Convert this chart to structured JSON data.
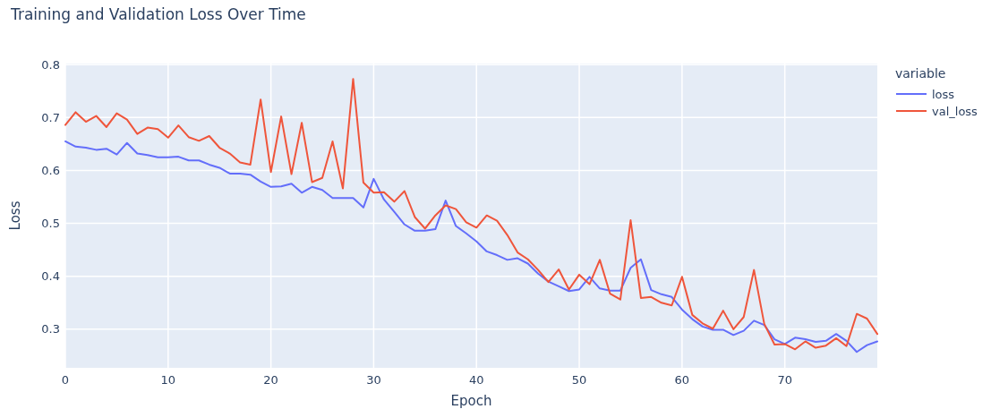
{
  "chart_data": {
    "type": "line",
    "title": "Training and Validation Loss Over Time",
    "xlabel": "Epoch",
    "ylabel": "Loss",
    "legend_title": "variable",
    "legend": "right",
    "grid": true,
    "line_style": "solid",
    "x": [
      0,
      1,
      2,
      3,
      4,
      5,
      6,
      7,
      8,
      9,
      10,
      11,
      12,
      13,
      14,
      15,
      16,
      17,
      18,
      19,
      20,
      21,
      22,
      23,
      24,
      25,
      26,
      27,
      28,
      29,
      30,
      31,
      32,
      33,
      34,
      35,
      36,
      37,
      38,
      39,
      40,
      41,
      42,
      43,
      44,
      45,
      46,
      47,
      48,
      49,
      50,
      51,
      52,
      53,
      54,
      55,
      56,
      57,
      58,
      59,
      60,
      61,
      62,
      63,
      64,
      65,
      66,
      67,
      68,
      69,
      70,
      71,
      72,
      73,
      74,
      75,
      76,
      77,
      78,
      79
    ],
    "xlim": [
      0,
      79
    ],
    "xticks": [
      0,
      10,
      20,
      30,
      40,
      50,
      60,
      70
    ],
    "ylim": [
      0.227,
      0.802
    ],
    "yticks": [
      0.3,
      0.4,
      0.5,
      0.6,
      0.7,
      0.8
    ],
    "series": [
      {
        "name": "loss",
        "color": "#636efa",
        "values": [
          0.655,
          0.645,
          0.643,
          0.639,
          0.641,
          0.63,
          0.652,
          0.632,
          0.629,
          0.625,
          0.625,
          0.626,
          0.619,
          0.619,
          0.611,
          0.605,
          0.594,
          0.594,
          0.592,
          0.579,
          0.569,
          0.57,
          0.575,
          0.558,
          0.569,
          0.563,
          0.548,
          0.548,
          0.548,
          0.53,
          0.584,
          0.545,
          0.522,
          0.498,
          0.486,
          0.486,
          0.489,
          0.543,
          0.495,
          0.481,
          0.466,
          0.447,
          0.44,
          0.431,
          0.434,
          0.424,
          0.405,
          0.39,
          0.381,
          0.372,
          0.375,
          0.399,
          0.377,
          0.373,
          0.373,
          0.416,
          0.432,
          0.374,
          0.366,
          0.361,
          0.337,
          0.319,
          0.305,
          0.299,
          0.299,
          0.289,
          0.297,
          0.316,
          0.308,
          0.281,
          0.272,
          0.284,
          0.281,
          0.276,
          0.278,
          0.291,
          0.278,
          0.257,
          0.27,
          0.277
        ]
      },
      {
        "name": "val_loss",
        "color": "#ef553b",
        "values": [
          0.686,
          0.71,
          0.692,
          0.703,
          0.682,
          0.708,
          0.696,
          0.669,
          0.681,
          0.678,
          0.662,
          0.685,
          0.663,
          0.656,
          0.665,
          0.643,
          0.632,
          0.615,
          0.611,
          0.734,
          0.597,
          0.702,
          0.593,
          0.69,
          0.578,
          0.586,
          0.655,
          0.566,
          0.773,
          0.577,
          0.558,
          0.559,
          0.541,
          0.561,
          0.512,
          0.49,
          0.515,
          0.534,
          0.527,
          0.502,
          0.492,
          0.515,
          0.505,
          0.478,
          0.445,
          0.432,
          0.412,
          0.389,
          0.413,
          0.375,
          0.403,
          0.385,
          0.431,
          0.367,
          0.356,
          0.506,
          0.359,
          0.361,
          0.35,
          0.345,
          0.399,
          0.327,
          0.311,
          0.301,
          0.335,
          0.3,
          0.323,
          0.412,
          0.31,
          0.271,
          0.272,
          0.262,
          0.277,
          0.265,
          0.269,
          0.283,
          0.268,
          0.329,
          0.32,
          0.291
        ]
      }
    ]
  }
}
